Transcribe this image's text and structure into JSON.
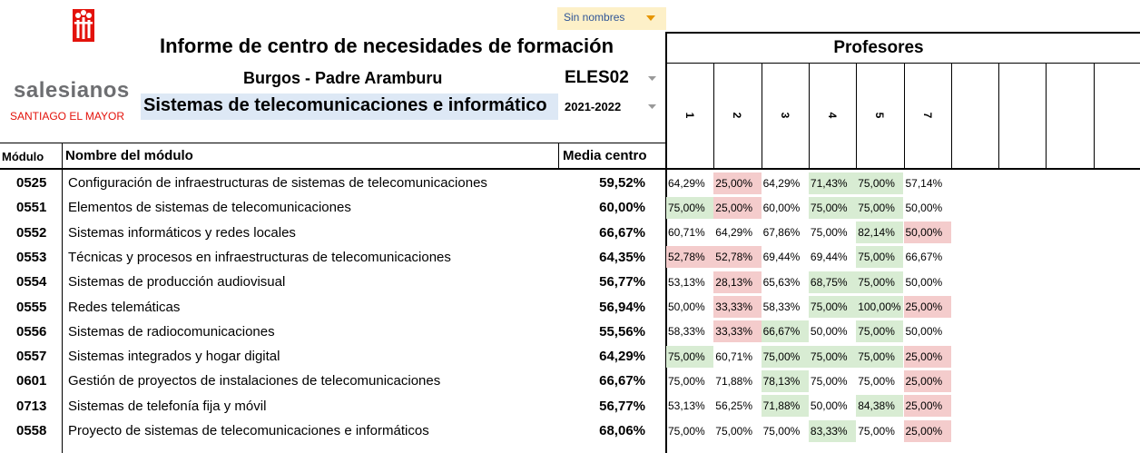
{
  "logo": {
    "name": "salesianos",
    "subtitle": "SANTIAGO EL MAYOR"
  },
  "filter": "Sin nombres",
  "header": {
    "title": "Informe de centro de necesidades de formación",
    "centre": "Burgos - Padre Aramburu",
    "code": "ELES02",
    "course_name": "Sistemas de telecomunicaciones e informático",
    "year": "2021-2022"
  },
  "teachers": {
    "title": "Profesores",
    "columns": [
      "1",
      "2",
      "3",
      "4",
      "5",
      "7"
    ]
  },
  "table": {
    "columns": [
      "Módulo",
      "Nombre del módulo",
      "Media centro"
    ],
    "rows": [
      {
        "code": "0525",
        "name": "Configuración de infraestructuras de sistemas de telecomunicaciones",
        "average": "59,52%",
        "scores": [
          "64,29%",
          "25,00%",
          "64,29%",
          "71,43%",
          "75,00%",
          "57,14%"
        ],
        "shading": [
          null,
          "red",
          null,
          "green",
          "green",
          null
        ]
      },
      {
        "code": "0551",
        "name": "Elementos de sistemas de telecomunicaciones",
        "average": "60,00%",
        "scores": [
          "75,00%",
          "25,00%",
          "60,00%",
          "75,00%",
          "75,00%",
          "50,00%"
        ],
        "shading": [
          "green",
          "red",
          null,
          "green",
          "green",
          null
        ]
      },
      {
        "code": "0552",
        "name": "Sistemas informáticos y redes locales",
        "average": "66,67%",
        "scores": [
          "60,71%",
          "64,29%",
          "67,86%",
          "75,00%",
          "82,14%",
          "50,00%"
        ],
        "shading": [
          null,
          null,
          null,
          null,
          "green",
          "red"
        ]
      },
      {
        "code": "0553",
        "name": "Técnicas y procesos en infraestructuras de telecomunicaciones",
        "average": "64,35%",
        "scores": [
          "52,78%",
          "52,78%",
          "69,44%",
          "69,44%",
          "75,00%",
          "66,67%"
        ],
        "shading": [
          "red",
          "red",
          null,
          null,
          "green",
          null
        ]
      },
      {
        "code": "0554",
        "name": "Sistemas de producción audiovisual",
        "average": "56,77%",
        "scores": [
          "53,13%",
          "28,13%",
          "65,63%",
          "68,75%",
          "75,00%",
          "50,00%"
        ],
        "shading": [
          null,
          "red",
          null,
          "green",
          "green",
          null
        ]
      },
      {
        "code": "0555",
        "name": "Redes telemáticas",
        "average": "56,94%",
        "scores": [
          "50,00%",
          "33,33%",
          "58,33%",
          "75,00%",
          "100,00%",
          "25,00%"
        ],
        "shading": [
          null,
          "red",
          null,
          "green",
          "green",
          "red"
        ]
      },
      {
        "code": "0556",
        "name": "Sistemas de radiocomunicaciones",
        "average": "55,56%",
        "scores": [
          "58,33%",
          "33,33%",
          "66,67%",
          "50,00%",
          "75,00%",
          "50,00%"
        ],
        "shading": [
          null,
          "red",
          "green",
          null,
          "green",
          null
        ]
      },
      {
        "code": "0557",
        "name": "Sistemas integrados y hogar digital",
        "average": "64,29%",
        "scores": [
          "75,00%",
          "60,71%",
          "75,00%",
          "75,00%",
          "75,00%",
          "25,00%"
        ],
        "shading": [
          "green",
          null,
          "green",
          "green",
          "green",
          "red"
        ]
      },
      {
        "code": "0601",
        "name": "Gestión de proyectos de instalaciones de telecomunicaciones",
        "average": "66,67%",
        "scores": [
          "75,00%",
          "71,88%",
          "78,13%",
          "75,00%",
          "75,00%",
          "25,00%"
        ],
        "shading": [
          null,
          null,
          "green",
          null,
          null,
          "red"
        ]
      },
      {
        "code": "0713",
        "name": "Sistemas de telefonía fija y móvil",
        "average": "56,77%",
        "scores": [
          "53,13%",
          "56,25%",
          "71,88%",
          "50,00%",
          "84,38%",
          "25,00%"
        ],
        "shading": [
          null,
          null,
          "green",
          null,
          "green",
          "red"
        ]
      },
      {
        "code": "0558",
        "name": "Proyecto de sistemas de telecomunicaciones e informáticos",
        "average": "68,06%",
        "scores": [
          "75,00%",
          "75,00%",
          "75,00%",
          "83,33%",
          "75,00%",
          "25,00%"
        ],
        "shading": [
          null,
          null,
          null,
          "green",
          null,
          "red"
        ]
      }
    ]
  }
}
